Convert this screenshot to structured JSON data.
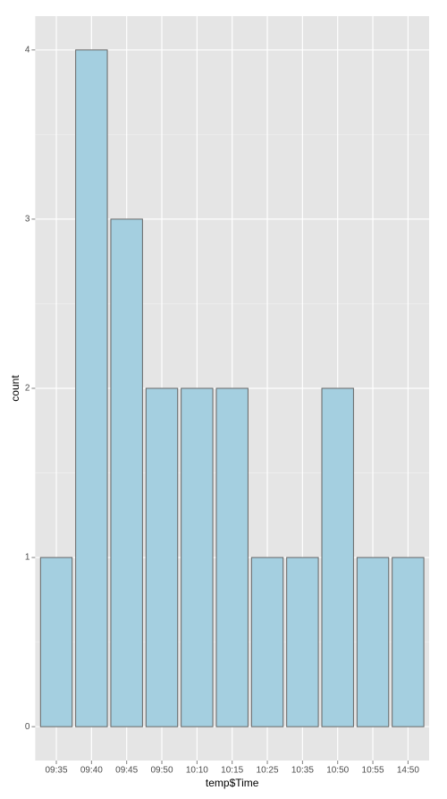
{
  "chart_data": {
    "type": "bar",
    "x_label": "temp$Time",
    "y_label": "count",
    "categories": [
      "09:35",
      "09:40",
      "09:45",
      "09:50",
      "10:10",
      "10:15",
      "10:25",
      "10:35",
      "10:50",
      "10:55",
      "14:50"
    ],
    "values": [
      1,
      4,
      3,
      2,
      2,
      2,
      1,
      1,
      2,
      1,
      1
    ],
    "color": "#a4cfe0",
    "edge_color": "#666666",
    "ylim": [
      -0.2,
      4.2
    ],
    "yticks": [
      0,
      1,
      2,
      3,
      4
    ],
    "grid": true
  }
}
